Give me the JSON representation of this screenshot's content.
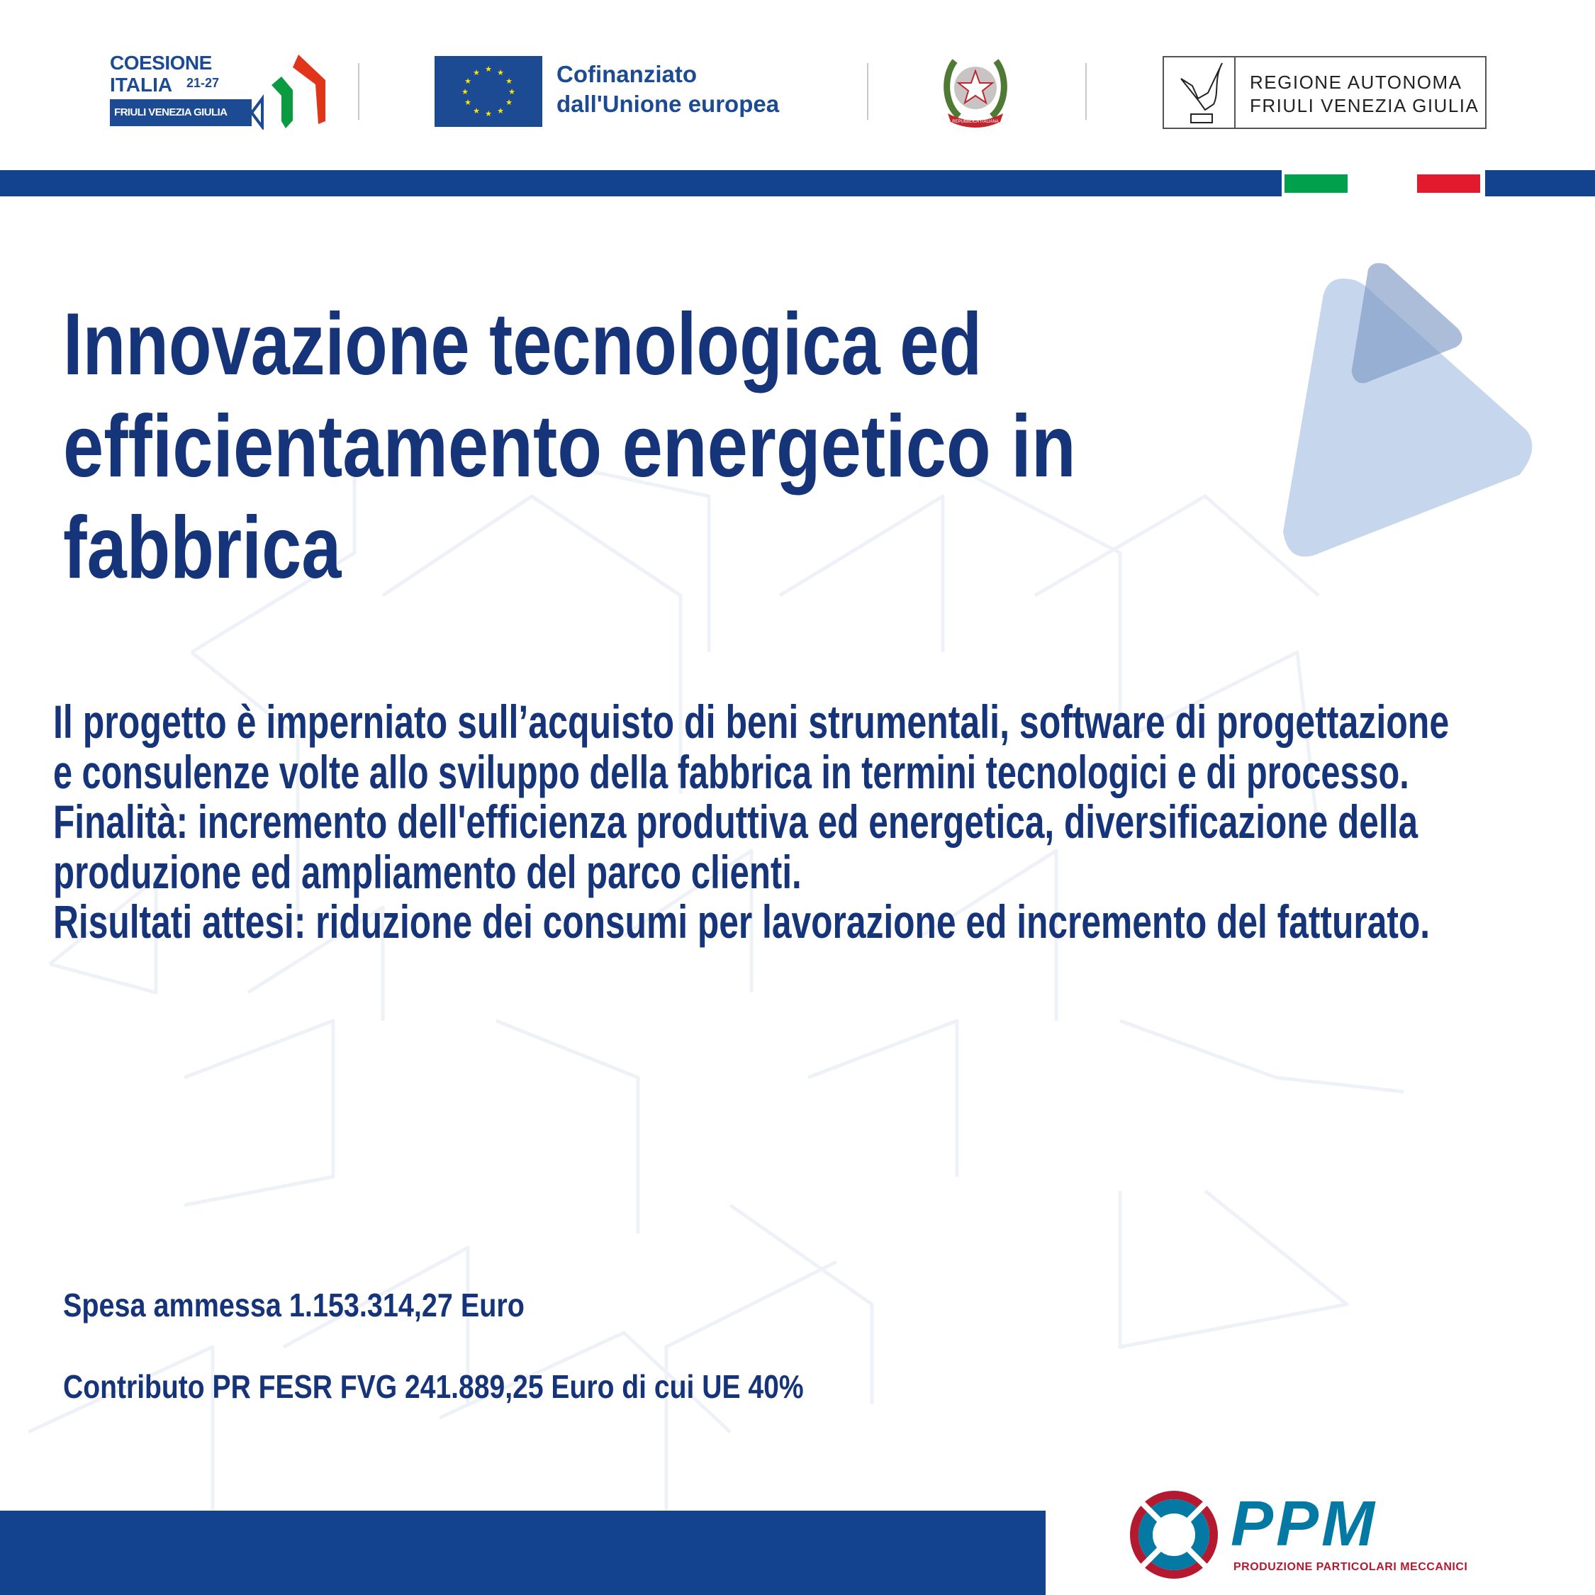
{
  "header": {
    "coesione_logo": {
      "line1": "COESIONE",
      "line2": "ITALIA",
      "years": "21-27",
      "region": "FRIULI VENEZIA GIULIA"
    },
    "eu_logo": {
      "line1": "Cofinanziato",
      "line2": "dall'Unione europea"
    },
    "emblem": {
      "ribbon": "REPUBBLICA ITALIANA"
    },
    "region_logo": {
      "line1": "REGIONE AUTONOMA",
      "line2": "FRIULI VENEZIA GIULIA"
    }
  },
  "colors": {
    "navy": "#15347a",
    "bar_blue": "#13428f",
    "flag_green": "#00a04d",
    "flag_red": "#e31a2d",
    "ppm_teal": "#0479a3",
    "ppm_red": "#b5192f"
  },
  "title": {
    "lines": [
      "Innovazione tecnologica ed",
      "efficientamento energetico in",
      "fabbrica"
    ]
  },
  "description": {
    "lines": [
      "Il progetto è imperniato sull’acquisto di beni strumentali, software di progettazione",
      "e consulenze volte allo sviluppo della fabbrica in termini tecnologici e di processo.",
      "Finalità: incremento dell'efficienza produttiva ed energetica, diversificazione della",
      "produzione ed ampliamento del parco clienti.",
      "Risultati attesi: riduzione dei consumi per lavorazione ed incremento del fatturato."
    ]
  },
  "funding": {
    "spesa": "Spesa ammessa 1.153.314,27 Euro",
    "contributo": "Contributo PR FESR FVG 241.889,25 Euro di cui UE 40%"
  },
  "footer": {
    "ppm_logo": {
      "name": "PPM",
      "subtitle": "PRODUZIONE PARTICOLARI MECCANICI"
    }
  }
}
